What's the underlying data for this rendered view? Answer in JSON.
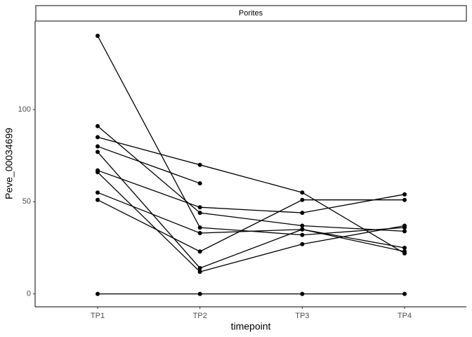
{
  "chart_data": {
    "type": "line",
    "facet": "Porites",
    "x_label": "timepoint",
    "y_label": "Peve_00034699",
    "categories": [
      "TP1",
      "TP2",
      "TP3",
      "TP4"
    ],
    "series": [
      {
        "color": "#000000",
        "values": [
          140,
          36,
          32,
          36
        ]
      },
      {
        "color": "#000000",
        "values": [
          91,
          44,
          37,
          34
        ]
      },
      {
        "color": "#000000",
        "values": [
          85,
          70,
          55,
          22
        ]
      },
      {
        "color": "#000000",
        "values": [
          80,
          60,
          null,
          null
        ]
      },
      {
        "color": "#000000",
        "values": [
          77,
          14,
          35,
          23
        ]
      },
      {
        "color": "#000000",
        "values": [
          67,
          47,
          44,
          54
        ]
      },
      {
        "color": "#000000",
        "values": [
          66,
          12,
          27,
          37
        ]
      },
      {
        "color": "#000000",
        "values": [
          55,
          33,
          35,
          25
        ]
      },
      {
        "color": "#000000",
        "values": [
          51,
          23,
          51,
          51
        ]
      },
      {
        "color": "#000000",
        "values": [
          0,
          0,
          0,
          0
        ]
      }
    ],
    "ylim": [
      -7,
      148
    ],
    "yticks": [
      0,
      50,
      100
    ]
  }
}
